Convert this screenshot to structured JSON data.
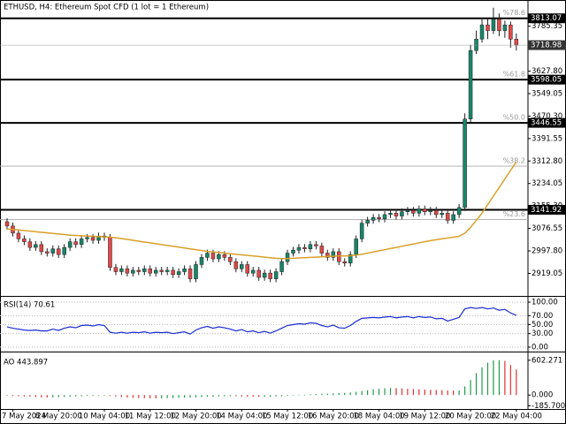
{
  "chart_data": [
    {
      "type": "candlestick",
      "title": "ETHUSD, H4:  Ethereum Spot CFD (1 lot = 1 Ethereum)",
      "categories": [
        null,
        "7 May 2024",
        null,
        null,
        null,
        null,
        null,
        null,
        null,
        "8 May 20:00",
        null,
        null,
        null,
        null,
        null,
        null,
        null,
        "10 May 04:00",
        null,
        null,
        null,
        null,
        null,
        null,
        null,
        "11 May 12:00",
        null,
        null,
        null,
        null,
        null,
        null,
        null,
        "12 May 20:00",
        null,
        null,
        null,
        null,
        null,
        null,
        null,
        "14 May 04:00",
        null,
        null,
        null,
        null,
        null,
        null,
        null,
        "15 May 12:00",
        null,
        null,
        null,
        null,
        null,
        null,
        null,
        "16 May 20:00",
        null,
        null,
        null,
        null,
        null,
        null,
        null,
        "18 May 04:00",
        null,
        null,
        null,
        null,
        null,
        null,
        null,
        "19 May 12:00",
        null,
        null,
        null,
        null,
        null,
        null,
        null,
        "20 May 20:00",
        null,
        null,
        null,
        null,
        null,
        null,
        null,
        "22 May 04:00"
      ],
      "open": [
        3100,
        3085,
        3060,
        3040,
        3030,
        3010,
        3020,
        2995,
        2990,
        3005,
        2985,
        3010,
        3030,
        3020,
        3040,
        3045,
        3035,
        3050,
        3045,
        2940,
        2925,
        2935,
        2920,
        2930,
        2925,
        2935,
        2920,
        2930,
        2925,
        2930,
        2915,
        2925,
        2935,
        2900,
        2950,
        2975,
        2990,
        2970,
        2985,
        2975,
        2960,
        2935,
        2950,
        2920,
        2930,
        2905,
        2920,
        2900,
        2925,
        2960,
        2990,
        3000,
        3010,
        3005,
        3020,
        3015,
        2990,
        2975,
        2995,
        2960,
        2955,
        2985,
        3040,
        3095,
        3105,
        3115,
        3110,
        3125,
        3130,
        3120,
        3135,
        3140,
        3130,
        3145,
        3135,
        3140,
        3125,
        3130,
        3105,
        3125,
        3150,
        3460,
        3700,
        3740,
        3790,
        3770,
        3810,
        3770,
        3790,
        3740
      ],
      "high": [
        3112,
        3097,
        3072,
        3052,
        3042,
        3032,
        3032,
        3007,
        3017,
        3017,
        3022,
        3042,
        3042,
        3052,
        3057,
        3057,
        3062,
        3062,
        3057,
        2952,
        2947,
        2947,
        2942,
        2942,
        2947,
        2947,
        2942,
        2942,
        2942,
        2942,
        2937,
        2947,
        2947,
        2962,
        2987,
        3002,
        3002,
        2997,
        2997,
        2987,
        2972,
        2962,
        2962,
        2942,
        2942,
        2932,
        2932,
        2937,
        2972,
        3002,
        3012,
        3022,
        3022,
        3032,
        3032,
        3027,
        3002,
        3007,
        3007,
        2972,
        2997,
        3052,
        3107,
        3117,
        3127,
        3127,
        3137,
        3142,
        3142,
        3147,
        3152,
        3152,
        3157,
        3157,
        3152,
        3152,
        3142,
        3142,
        3137,
        3162,
        3480,
        3720,
        3770,
        3815,
        3810,
        3850,
        3830,
        3805,
        3802,
        3760
      ],
      "low": [
        3073,
        3048,
        3028,
        3018,
        2998,
        2998,
        2983,
        2978,
        2978,
        2973,
        2973,
        2998,
        3008,
        3008,
        3028,
        3023,
        3023,
        3033,
        2928,
        2913,
        2913,
        2908,
        2908,
        2913,
        2913,
        2908,
        2908,
        2913,
        2913,
        2903,
        2903,
        2913,
        2888,
        2888,
        2938,
        2963,
        2958,
        2958,
        2963,
        2948,
        2923,
        2923,
        2908,
        2908,
        2893,
        2893,
        2888,
        2888,
        2913,
        2948,
        2978,
        2988,
        2993,
        2993,
        3003,
        2978,
        2963,
        2963,
        2948,
        2943,
        2943,
        2973,
        3028,
        3083,
        3093,
        3098,
        3098,
        3113,
        3108,
        3108,
        3123,
        3118,
        3118,
        3123,
        3123,
        3113,
        3113,
        3093,
        3093,
        3113,
        3138,
        3448,
        3688,
        3728,
        3740,
        3758,
        3750,
        3745,
        3710,
        3700
      ],
      "close": [
        3085,
        3060,
        3040,
        3030,
        3010,
        3020,
        2995,
        2990,
        3005,
        2985,
        3010,
        3030,
        3020,
        3040,
        3045,
        3035,
        3050,
        3045,
        2940,
        2925,
        2935,
        2920,
        2930,
        2925,
        2935,
        2920,
        2930,
        2925,
        2930,
        2915,
        2925,
        2935,
        2900,
        2950,
        2975,
        2990,
        2970,
        2985,
        2975,
        2960,
        2935,
        2950,
        2920,
        2930,
        2905,
        2920,
        2900,
        2925,
        2960,
        2990,
        3000,
        3010,
        3005,
        3020,
        3015,
        2990,
        2975,
        2995,
        2960,
        2955,
        2985,
        3040,
        3095,
        3105,
        3115,
        3110,
        3125,
        3130,
        3120,
        3135,
        3140,
        3130,
        3145,
        3135,
        3140,
        3125,
        3130,
        3105,
        3125,
        3150,
        3460,
        3700,
        3740,
        3790,
        3770,
        3810,
        3770,
        3790,
        3740,
        3719
      ],
      "up_color": "#17866a",
      "down_color": "#e04848",
      "ma": {
        "color": "#d9a02a",
        "values": [
          3075,
          3073,
          3071,
          3069,
          3067,
          3065,
          3063,
          3061,
          3059,
          3057,
          3055,
          3053,
          3052,
          3051,
          3050,
          3049,
          3048,
          3047,
          3046,
          3044,
          3041,
          3038,
          3035,
          3032,
          3029,
          3026,
          3023,
          3020,
          3017,
          3014,
          3011,
          3008,
          3005,
          3002,
          2999,
          2996,
          2994,
          2992,
          2990,
          2988,
          2986,
          2984,
          2982,
          2980,
          2978,
          2976,
          2974,
          2972,
          2971,
          2971,
          2972,
          2973,
          2974,
          2975,
          2976,
          2977,
          2978,
          2979,
          2980,
          2980,
          2981,
          2983,
          2986,
          2990,
          2994,
          2998,
          3002,
          3006,
          3010,
          3014,
          3018,
          3022,
          3026,
          3030,
          3034,
          3037,
          3040,
          3043,
          3046,
          3049,
          3060,
          3080,
          3105,
          3130,
          3160,
          3190,
          3220,
          3250,
          3280,
          3310
        ]
      },
      "ylim": [
        2840,
        3871
      ],
      "yticks": [
        3785.35,
        {
          "value": 3627.8,
          "label": "3627.80"
        },
        3549.05,
        {
          "value": 3470.3,
          "label": "3470.30"
        },
        3391.55,
        {
          "value": 3312.8,
          "label": "3312.80"
        },
        3234.05,
        {
          "value": 3155.3,
          "label": "3155.30"
        },
        3076.55,
        {
          "value": 2997.8,
          "label": "2997.80"
        },
        2919.05
      ],
      "levels": [
        3813.07,
        3598.05,
        3446.55,
        3141.92
      ],
      "bid": 3718.98,
      "fib": [
        {
          "label": "%78.6",
          "value": 3813.07
        },
        {
          "label": "%61.8",
          "value": 3598.05
        },
        {
          "label": "%50.0",
          "value": 3446.55
        },
        {
          "label": "%38.2",
          "value": 3295
        },
        {
          "label": "%23.6",
          "value": 3108
        }
      ]
    },
    {
      "type": "line",
      "title": "RSI(14) 70.61",
      "color": "#1a2cd0",
      "values": [
        45,
        42,
        40,
        38,
        37,
        38,
        36,
        36,
        40,
        37,
        42,
        45,
        43,
        48,
        49,
        47,
        50,
        48,
        33,
        31,
        33,
        31,
        33,
        32,
        34,
        31,
        33,
        32,
        33,
        30,
        32,
        34,
        29,
        38,
        43,
        46,
        42,
        45,
        43,
        40,
        36,
        39,
        34,
        36,
        32,
        35,
        31,
        36,
        42,
        48,
        50,
        52,
        51,
        54,
        53,
        48,
        45,
        49,
        43,
        42,
        48,
        57,
        64,
        65,
        66,
        65,
        67,
        68,
        65,
        67,
        68,
        65,
        68,
        66,
        67,
        63,
        64,
        58,
        62,
        66,
        85,
        88,
        86,
        88,
        85,
        87,
        82,
        84,
        76,
        70.61
      ],
      "ylim": [
        -8,
        108
      ],
      "yticks": [
        {
          "value": 100,
          "label": "100.00"
        },
        {
          "value": 70,
          "label": "70.00"
        },
        {
          "value": 50,
          "label": "50.00"
        },
        {
          "value": 30,
          "label": "30.00"
        },
        {
          "value": 0,
          "label": "0.00"
        }
      ]
    },
    {
      "type": "bar",
      "title": "AO 443.897",
      "up_color": "#1f9a4a",
      "down_color": "#e03030",
      "values": [
        -10,
        -15,
        -20,
        -25,
        -30,
        -35,
        -40,
        -42,
        -40,
        -38,
        -35,
        -30,
        -25,
        -20,
        -15,
        -12,
        -10,
        -8,
        -15,
        -25,
        -35,
        -42,
        -48,
        -52,
        -55,
        -57,
        -58,
        -56,
        -54,
        -50,
        -48,
        -45,
        -44,
        -40,
        -35,
        -30,
        -28,
        -25,
        -22,
        -20,
        -22,
        -25,
        -28,
        -30,
        -32,
        -30,
        -28,
        -25,
        -20,
        -15,
        -8,
        -2,
        5,
        12,
        18,
        22,
        25,
        30,
        35,
        38,
        45,
        55,
        70,
        85,
        100,
        110,
        118,
        122,
        120,
        115,
        110,
        105,
        100,
        95,
        90,
        88,
        85,
        80,
        78,
        80,
        150,
        260,
        380,
        480,
        560,
        600,
        602,
        590,
        520,
        443.897
      ],
      "ylim": [
        -226,
        707
      ],
      "yticks": [
        602.271,
        {
          "value": 0,
          "label": "0.000"
        },
        {
          "value": -185.7,
          "label": "-185.700"
        }
      ]
    }
  ]
}
